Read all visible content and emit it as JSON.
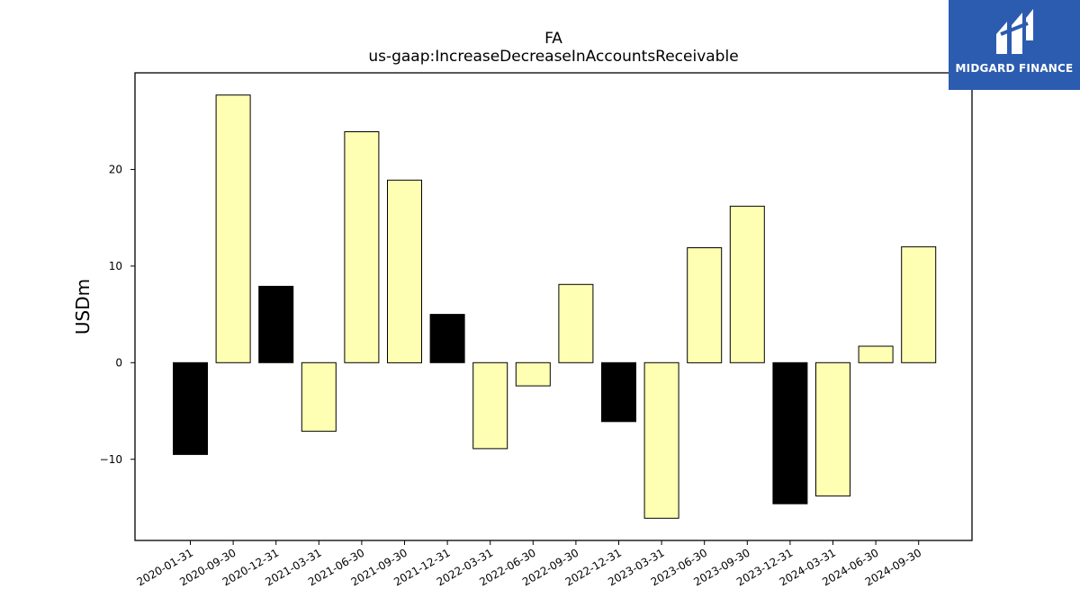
{
  "logo": {
    "text": "MIDGARD FINANCE",
    "background": "#2c5cb0",
    "icon": "mf-monogram-icon"
  },
  "chart_data": {
    "type": "bar",
    "title": "FA",
    "subtitle": "us-gaap:IncreaseDecreaseInAccountsReceivable",
    "xlabel": "",
    "ylabel": "USDm",
    "ylim": [
      -18.4,
      30.0
    ],
    "yticks": [
      -10,
      0,
      10,
      20
    ],
    "ytick_labels": [
      "−10",
      "0",
      "10",
      "20"
    ],
    "grid": false,
    "categories": [
      "2020-01-31",
      "2020-09-30",
      "2020-12-31",
      "2021-03-31",
      "2021-06-30",
      "2021-09-30",
      "2021-12-31",
      "2022-03-31",
      "2022-06-30",
      "2022-09-30",
      "2022-12-31",
      "2023-03-31",
      "2023-06-30",
      "2023-09-30",
      "2023-12-31",
      "2024-03-31",
      "2024-06-30",
      "2024-09-30"
    ],
    "values": [
      -9.5,
      27.7,
      7.9,
      -7.1,
      23.9,
      18.9,
      5.0,
      -8.9,
      -2.4,
      8.1,
      -6.1,
      -16.1,
      11.9,
      16.2,
      -14.6,
      -13.8,
      1.7,
      12.0
    ],
    "highlight": [
      true,
      false,
      true,
      false,
      false,
      false,
      true,
      false,
      false,
      false,
      true,
      false,
      false,
      false,
      true,
      false,
      false,
      false
    ],
    "colors": {
      "default": "#ffffb3",
      "highlight": "#000000",
      "edge": "#000000"
    }
  }
}
